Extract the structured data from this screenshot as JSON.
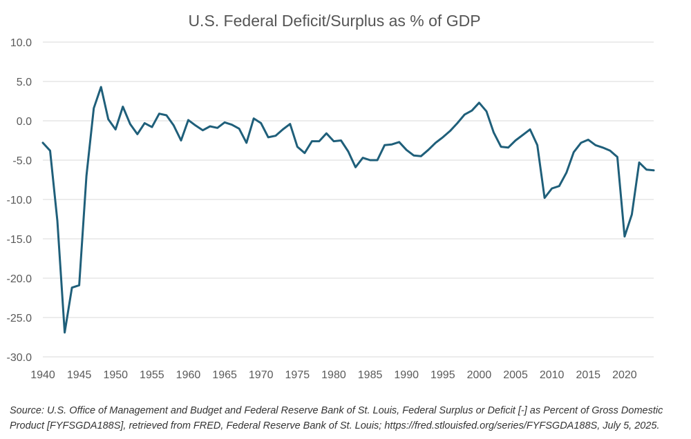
{
  "chart_data": {
    "type": "line",
    "title": "U.S. Federal Deficit/Surplus as % of GDP",
    "xlabel": "",
    "ylabel": "",
    "xlim": [
      1940,
      2024
    ],
    "ylim": [
      -30,
      10
    ],
    "x_ticks": [
      "1940",
      "1945",
      "1950",
      "1955",
      "1960",
      "1965",
      "1970",
      "1975",
      "1980",
      "1985",
      "1990",
      "1995",
      "2000",
      "2005",
      "2010",
      "2015",
      "2020"
    ],
    "y_ticks": [
      "10.0",
      "5.0",
      "0.0",
      "-5.0",
      "-10.0",
      "-15.0",
      "-20.0",
      "-25.0",
      "-30.0"
    ],
    "grid": "horizontal",
    "legend": "none",
    "series": [
      {
        "color": "#1f5f7a",
        "x": [
          1940,
          1941,
          1942,
          1943,
          1944,
          1945,
          1946,
          1947,
          1948,
          1949,
          1950,
          1951,
          1952,
          1953,
          1954,
          1955,
          1956,
          1957,
          1958,
          1959,
          1960,
          1961,
          1962,
          1963,
          1964,
          1965,
          1966,
          1967,
          1968,
          1969,
          1970,
          1971,
          1972,
          1973,
          1974,
          1975,
          1976,
          1977,
          1978,
          1979,
          1980,
          1981,
          1982,
          1983,
          1984,
          1985,
          1986,
          1987,
          1988,
          1989,
          1990,
          1991,
          1992,
          1993,
          1994,
          1995,
          1996,
          1997,
          1998,
          1999,
          2000,
          2001,
          2002,
          2003,
          2004,
          2005,
          2006,
          2007,
          2008,
          2009,
          2010,
          2011,
          2012,
          2013,
          2014,
          2015,
          2016,
          2017,
          2018,
          2019,
          2020,
          2021,
          2022,
          2023,
          2024
        ],
        "values": [
          -2.8,
          -3.8,
          -12.7,
          -26.9,
          -21.2,
          -20.9,
          -7.0,
          1.6,
          4.3,
          0.2,
          -1.1,
          1.8,
          -0.4,
          -1.7,
          -0.3,
          -0.8,
          0.9,
          0.7,
          -0.6,
          -2.5,
          0.1,
          -0.6,
          -1.2,
          -0.7,
          -0.9,
          -0.2,
          -0.5,
          -1.0,
          -2.8,
          0.3,
          -0.3,
          -2.1,
          -1.9,
          -1.1,
          -0.4,
          -3.3,
          -4.1,
          -2.6,
          -2.6,
          -1.6,
          -2.6,
          -2.5,
          -3.9,
          -5.9,
          -4.7,
          -5.0,
          -5.0,
          -3.1,
          -3.0,
          -2.7,
          -3.7,
          -4.4,
          -4.5,
          -3.7,
          -2.8,
          -2.1,
          -1.3,
          -0.3,
          0.8,
          1.3,
          2.3,
          1.2,
          -1.5,
          -3.3,
          -3.4,
          -2.5,
          -1.8,
          -1.1,
          -3.1,
          -9.8,
          -8.6,
          -8.3,
          -6.6,
          -4.0,
          -2.8,
          -2.4,
          -3.1,
          -3.4,
          -3.8,
          -4.6,
          -14.7,
          -11.9,
          -5.3,
          -6.2,
          -6.3
        ]
      }
    ]
  },
  "source_note": "Source: U.S. Office of Management and Budget and Federal Reserve Bank of St. Louis, Federal Surplus or Deficit [-] as Percent of Gross Domestic Product [FYFSGDA188S], retrieved from FRED, Federal Reserve Bank of St. Louis; https://fred.stlouisfed.org/series/FYFSGDA188S, July 5, 2025."
}
